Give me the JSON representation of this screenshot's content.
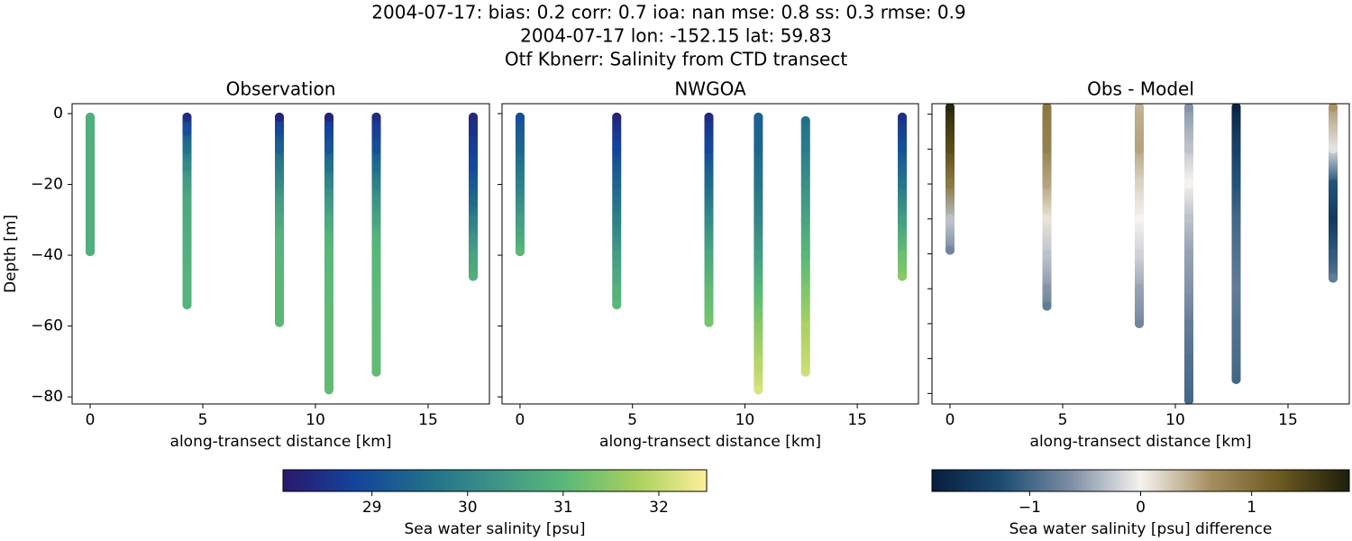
{
  "title": [
    "2004-07-17: bias: 0.2  corr: 0.7  ioa: nan  mse: 0.8  ss: 0.3  rmse: 0.9",
    "2004-07-17 lon: -152.15 lat: 59.83",
    "Otf Kbnerr: Salinity from CTD transect"
  ],
  "chart_data": [
    {
      "type": "scatter",
      "title": "Observation",
      "xlabel": "along-transect distance [km]",
      "ylabel": "Depth [m]",
      "xlim": [
        -0.8,
        17.72
      ],
      "ylim": [
        2.8,
        -82
      ],
      "xticks": [
        0,
        5,
        10,
        15
      ],
      "yticks": [
        0,
        {
          "value": -20,
          "label": "−20"
        },
        {
          "value": -40,
          "label": "−40"
        },
        {
          "value": -60,
          "label": "−60"
        },
        {
          "value": -80,
          "label": "−80"
        }
      ],
      "ytick_labels": true,
      "colorbar": 0,
      "casts": [
        {
          "x": 0,
          "depth": [
            -1,
            -10,
            -20,
            -30,
            -39
          ],
          "values": [
            30.8,
            30.8,
            30.8,
            30.8,
            30.8
          ]
        },
        {
          "x": 4.3,
          "depth": [
            -1,
            -5,
            -10,
            -15,
            -20,
            -25,
            -35,
            -45,
            -54
          ],
          "values": [
            28.4,
            29.0,
            29.6,
            30.1,
            30.5,
            30.7,
            30.8,
            30.9,
            30.9
          ]
        },
        {
          "x": 8.4,
          "depth": [
            -1,
            -5,
            -10,
            -15,
            -20,
            -25,
            -30,
            -35,
            -45,
            -59
          ],
          "values": [
            28.3,
            28.9,
            29.3,
            29.8,
            30.1,
            30.5,
            30.7,
            30.9,
            31.0,
            31.0
          ]
        },
        {
          "x": 10.6,
          "depth": [
            -1,
            -5,
            -10,
            -15,
            -20,
            -25,
            -30,
            -35,
            -40,
            -60,
            -78
          ],
          "values": [
            28.3,
            28.8,
            29.1,
            29.6,
            30.0,
            30.4,
            30.7,
            30.9,
            31.0,
            31.1,
            31.1
          ]
        },
        {
          "x": 12.7,
          "depth": [
            -1,
            -5,
            -10,
            -15,
            -20,
            -25,
            -30,
            -35,
            -40,
            -60,
            -73
          ],
          "values": [
            28.4,
            28.7,
            29.0,
            29.5,
            29.9,
            30.3,
            30.6,
            30.9,
            31.0,
            31.1,
            31.1
          ]
        },
        {
          "x": 17,
          "depth": [
            -1,
            -5,
            -10,
            -15,
            -20,
            -25,
            -30,
            -35,
            -40,
            -46
          ],
          "values": [
            28.4,
            28.5,
            28.7,
            28.9,
            29.2,
            29.5,
            29.9,
            30.3,
            30.6,
            30.8
          ]
        }
      ]
    },
    {
      "type": "scatter",
      "title": "NWGOA",
      "xlabel": "along-transect distance [km]",
      "xlim": [
        -0.8,
        17.72
      ],
      "ylim": [
        2.8,
        -82
      ],
      "xticks": [
        0,
        5,
        10,
        15
      ],
      "yticks": [
        0,
        -20,
        -40,
        -60,
        -80
      ],
      "ytick_labels": false,
      "colorbar": 0,
      "casts": [
        {
          "x": 0,
          "depth": [
            -1,
            -10,
            -20,
            -30,
            -39
          ],
          "values": [
            29.0,
            29.4,
            29.9,
            30.5,
            31.0
          ]
        },
        {
          "x": 4.3,
          "depth": [
            -1,
            -10,
            -20,
            -30,
            -40,
            -50,
            -54
          ],
          "values": [
            28.3,
            28.8,
            29.4,
            29.9,
            30.5,
            30.9,
            31.0
          ]
        },
        {
          "x": 8.4,
          "depth": [
            -1,
            -10,
            -20,
            -30,
            -40,
            -50,
            -59
          ],
          "values": [
            28.4,
            28.9,
            29.5,
            30.1,
            30.7,
            31.1,
            31.3
          ]
        },
        {
          "x": 10.6,
          "depth": [
            -1,
            -10,
            -20,
            -30,
            -40,
            -50,
            -60,
            -70,
            -78
          ],
          "values": [
            29.3,
            29.4,
            29.7,
            30.0,
            30.5,
            31.0,
            31.5,
            31.9,
            32.2
          ]
        },
        {
          "x": 12.7,
          "depth": [
            -2,
            -10,
            -20,
            -30,
            -40,
            -50,
            -60,
            -73
          ],
          "values": [
            29.6,
            29.8,
            30.2,
            30.6,
            31.0,
            31.4,
            31.8,
            32.1
          ]
        },
        {
          "x": 17,
          "depth": [
            -1,
            -10,
            -20,
            -30,
            -40,
            -46
          ],
          "values": [
            28.5,
            29.0,
            29.7,
            30.5,
            31.2,
            31.5
          ]
        }
      ]
    },
    {
      "type": "scatter",
      "title": "Obs - Model",
      "xlabel": "along-transect distance [km]",
      "xlim": [
        -0.8,
        17.72
      ],
      "ylim": [
        3,
        -83
      ],
      "xticks": [
        0,
        5,
        10,
        15
      ],
      "yticks": [
        0,
        -10,
        -20,
        -30,
        -40,
        -50,
        -60,
        -70,
        -80
      ],
      "ytick_labels": false,
      "colorbar": 1,
      "casts": [
        {
          "x": 0,
          "depth": [
            2,
            -10,
            -20,
            -30,
            -39
          ],
          "values": [
            1.8,
            1.4,
            0.9,
            -0.3,
            -0.7
          ]
        },
        {
          "x": 4.3,
          "depth": [
            2,
            -10,
            -20,
            -30,
            -40,
            -50,
            -55
          ],
          "values": [
            0.9,
            0.8,
            0.5,
            0.1,
            -0.3,
            -0.6,
            -0.8
          ]
        },
        {
          "x": 8.4,
          "depth": [
            2,
            -10,
            -20,
            -30,
            -40,
            -50,
            -60
          ],
          "values": [
            0.4,
            0.5,
            0.2,
            0.0,
            -0.2,
            -0.5,
            -0.7
          ]
        },
        {
          "x": 10.6,
          "depth": [
            2,
            -10,
            -20,
            -30,
            -40,
            -50,
            -60,
            -70,
            -82
          ],
          "values": [
            -0.6,
            -0.3,
            0.0,
            -0.3,
            -0.5,
            -0.6,
            -0.8,
            -0.9,
            -1.0
          ]
        },
        {
          "x": 12.7,
          "depth": [
            2,
            -10,
            -20,
            -30,
            -40,
            -50,
            -60,
            -76
          ],
          "values": [
            -1.8,
            -1.4,
            -1.2,
            -1.0,
            -0.9,
            -0.8,
            -0.9,
            -1.0
          ]
        },
        {
          "x": 17,
          "depth": [
            2,
            -10,
            -20,
            -30,
            -40,
            -47
          ],
          "values": [
            0.6,
            -0.1,
            -1.2,
            -1.5,
            -1.1,
            -0.8
          ]
        }
      ]
    }
  ],
  "colorbars": [
    {
      "label": "Sea water salinity [psu]",
      "lim": [
        28.07,
        32.5
      ],
      "ticks": [
        29,
        30,
        31,
        32
      ],
      "colors": [
        "#2a186c",
        "#14439c",
        "#206e8b",
        "#3d9387",
        "#5ab978",
        "#a8d05e",
        "#fdef9a"
      ]
    },
    {
      "label": "Sea water salinity [psu] difference",
      "lim": [
        -1.88,
        1.88
      ],
      "ticks": [
        {
          "value": -1,
          "label": "−1"
        },
        0,
        1
      ],
      "colors": [
        "#081d3d",
        "#1c4c72",
        "#7d8ea4",
        "#f5f2ef",
        "#a58f61",
        "#6c5a1f",
        "#1d1e0c"
      ]
    }
  ]
}
